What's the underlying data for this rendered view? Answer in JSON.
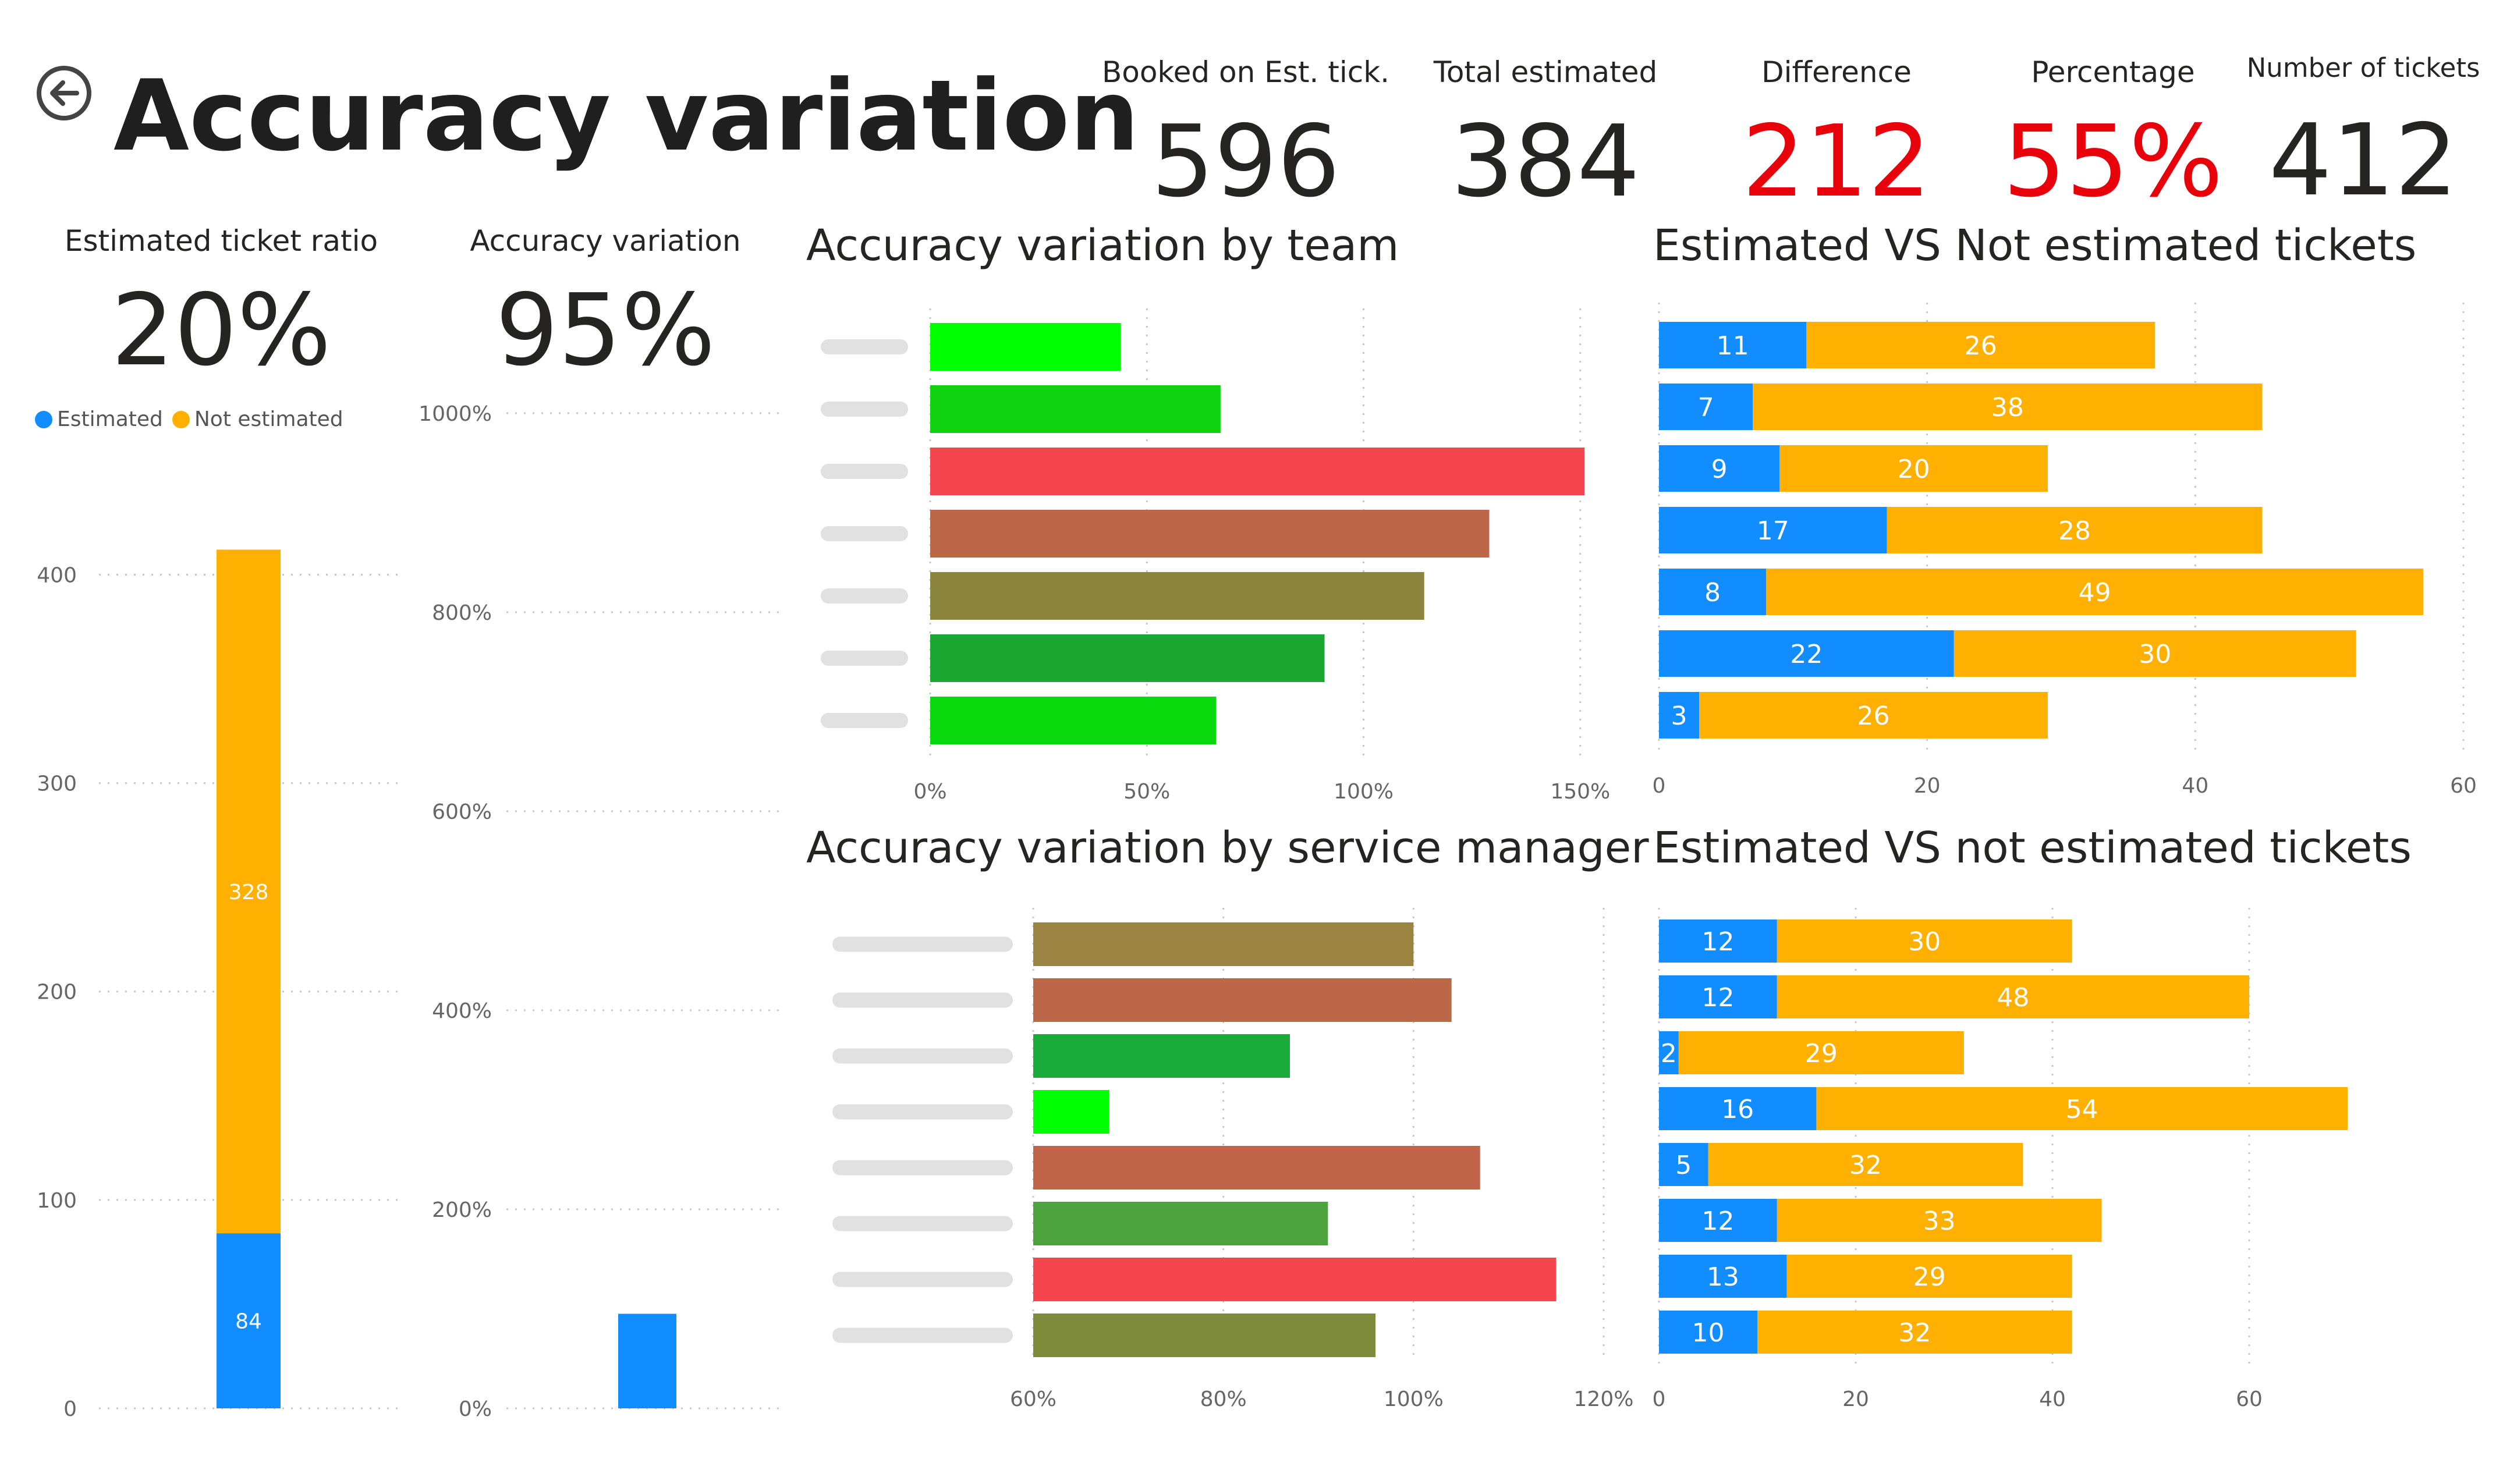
{
  "header": {
    "title": "Accuracy variation"
  },
  "kpis": [
    {
      "label": "Booked on Est. tick.",
      "value": "596",
      "highlight": false
    },
    {
      "label": "Total estimated",
      "value": "384",
      "highlight": false
    },
    {
      "label": "Difference",
      "value": "212",
      "highlight": true
    },
    {
      "label": "Percentage",
      "value": "55%",
      "highlight": true
    },
    {
      "label": "Number of tickets",
      "value": "412",
      "highlight": false
    }
  ],
  "cards": {
    "ratio": {
      "label": "Estimated ticket ratio",
      "value": "20%"
    },
    "accuracy": {
      "label": "Accuracy variation",
      "value": "95%"
    }
  },
  "legend": {
    "estimated": "Estimated",
    "not_estimated": "Not estimated"
  },
  "colors": {
    "estimated": "#118dff",
    "not_estimated": "#ffb000",
    "alert": "#e8000b"
  },
  "chart_titles": {
    "by_team": "Accuracy variation by team",
    "est_vs_not_team": "Estimated VS Not estimated tickets",
    "by_manager": "Accuracy variation by service manager",
    "est_vs_not_manager": "Estimated VS not estimated tickets"
  },
  "chart_data": [
    {
      "id": "ratio",
      "type": "bar",
      "stacked": true,
      "categories": [
        ""
      ],
      "series": [
        {
          "name": "Estimated",
          "values": [
            84
          ],
          "color": "#118dff"
        },
        {
          "name": "Not estimated",
          "values": [
            328
          ],
          "color": "#ffb000"
        }
      ],
      "ylim": [
        0,
        430
      ],
      "yticks": [
        0,
        100,
        200,
        300,
        400
      ],
      "grid": true,
      "legend": "top-left"
    },
    {
      "id": "accuracy",
      "type": "bar",
      "categories": [
        ""
      ],
      "values": [
        95
      ],
      "color": "#118dff",
      "ylim": [
        0,
        1000
      ],
      "yticks": [
        0,
        200,
        400,
        600,
        800,
        1000
      ],
      "yunit": "%",
      "grid": true
    },
    {
      "id": "by_team",
      "type": "bar",
      "orientation": "horizontal",
      "categories_redacted": true,
      "values": [
        44,
        67,
        151,
        129,
        114,
        91,
        66
      ],
      "colors": [
        "#00ff00",
        "#0fd10f",
        "#f5464f",
        "#bc6848",
        "#8c853e",
        "#1ca732",
        "#09d90c"
      ],
      "xlim": [
        0,
        155
      ],
      "xticks": [
        0,
        50,
        100,
        150
      ],
      "xunit": "%",
      "grid": true
    },
    {
      "id": "est_vs_not_team",
      "type": "bar",
      "orientation": "horizontal",
      "stacked": true,
      "series": [
        {
          "name": "Estimated",
          "values": [
            11,
            7,
            9,
            17,
            8,
            22,
            3
          ],
          "color": "#118dff"
        },
        {
          "name": "Not estimated",
          "values": [
            26,
            38,
            20,
            28,
            49,
            30,
            26
          ],
          "color": "#ffb000"
        }
      ],
      "xlim": [
        0,
        60
      ],
      "xticks": [
        0,
        20,
        40,
        60
      ],
      "grid": true
    },
    {
      "id": "by_manager",
      "type": "bar",
      "orientation": "horizontal",
      "categories_redacted": true,
      "values": [
        100,
        104,
        87,
        68,
        107,
        91,
        115,
        96
      ],
      "colors": [
        "#9b8342",
        "#bc6848",
        "#1aaa3a",
        "#00ff00",
        "#c0654a",
        "#4da33d",
        "#f5464f",
        "#7d8b3b"
      ],
      "xlim": [
        60,
        120
      ],
      "xticks": [
        60,
        80,
        100,
        120
      ],
      "xunit": "%",
      "grid": true
    },
    {
      "id": "est_vs_not_manager",
      "type": "bar",
      "orientation": "horizontal",
      "stacked": true,
      "series": [
        {
          "name": "Estimated",
          "values": [
            12,
            12,
            2,
            16,
            5,
            12,
            13,
            10
          ],
          "color": "#118dff"
        },
        {
          "name": "Not estimated",
          "values": [
            30,
            48,
            29,
            54,
            32,
            33,
            29,
            32
          ],
          "color": "#ffb000"
        }
      ],
      "xlim": [
        0,
        70
      ],
      "xticks": [
        0,
        20,
        40,
        60
      ],
      "grid": true
    }
  ]
}
